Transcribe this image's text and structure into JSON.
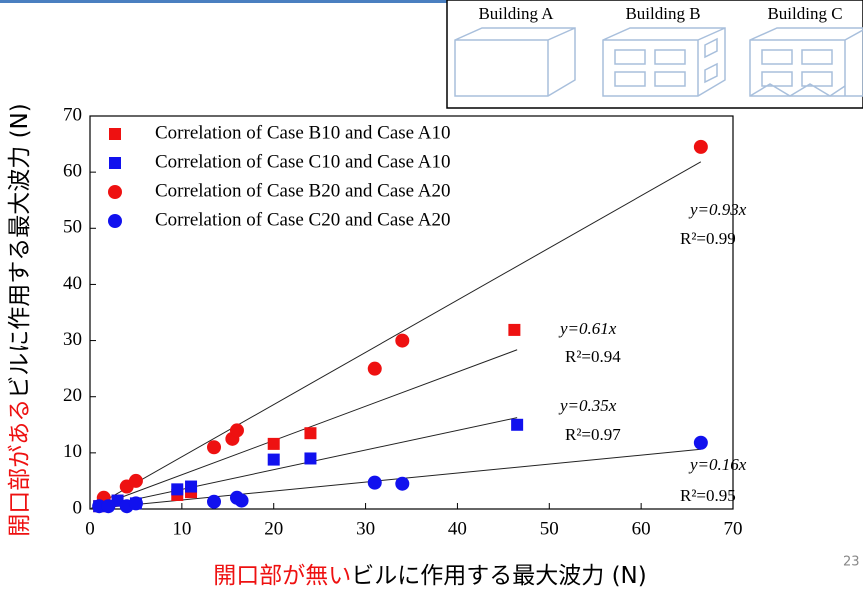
{
  "chart_data": {
    "type": "scatter",
    "xlabel_highlight": "開口部が無い",
    "xlabel_rest": "ビルに作用する最大波力 (N)",
    "ylabel_highlight": "開口部がある",
    "ylabel_rest": "ビルに作用する最大波力 (N)",
    "xlim": [
      0,
      70
    ],
    "ylim": [
      0,
      70
    ],
    "xticks": [
      0,
      10,
      20,
      30,
      40,
      50,
      60,
      70
    ],
    "yticks": [
      0,
      10,
      20,
      30,
      40,
      50,
      60,
      70
    ],
    "series": [
      {
        "name": "Correlation of Case B10 and Case A10",
        "color": "#ee1111",
        "marker": "square",
        "x": [
          1,
          3,
          9.5,
          11,
          20,
          24,
          46.2
        ],
        "values": [
          0.5,
          1.5,
          2.5,
          3,
          11.6,
          13.5,
          31.9
        ]
      },
      {
        "name": "Correlation of Case C10 and Case A10",
        "color": "#1111ee",
        "marker": "square",
        "x": [
          1,
          3,
          5,
          9.5,
          11,
          20,
          24,
          46.5
        ],
        "values": [
          0.5,
          1.5,
          1,
          3.5,
          4,
          8.8,
          9,
          15
        ]
      },
      {
        "name": "Correlation of Case B20 and Case A20",
        "color": "#ee1111",
        "marker": "circle",
        "x": [
          1.5,
          4,
          5,
          13.5,
          15.5,
          16,
          31,
          34,
          66.5
        ],
        "values": [
          2,
          4,
          5,
          11,
          12.5,
          14,
          25,
          30,
          64.5
        ]
      },
      {
        "name": "Correlation of Case C20 and Case A20",
        "color": "#1111ee",
        "marker": "circle",
        "x": [
          1,
          2,
          4,
          5,
          13.5,
          16,
          16.5,
          31,
          34,
          66.5
        ],
        "values": [
          0.5,
          0.5,
          0.5,
          1,
          1.3,
          2,
          1.5,
          4.7,
          4.5,
          11.8
        ]
      }
    ],
    "fits": [
      {
        "slope": 0.93,
        "x_end": 66.5,
        "label": "y=0.93x",
        "r2": "R²=0.99"
      },
      {
        "slope": 0.61,
        "x_end": 46.5,
        "label": "y=0.61x",
        "r2": "R²=0.94"
      },
      {
        "slope": 0.35,
        "x_end": 46.5,
        "label": "y=0.35x",
        "r2": "R²=0.97"
      },
      {
        "slope": 0.16,
        "x_end": 66.5,
        "label": "y=0.16x",
        "r2": "R²=0.95"
      }
    ]
  },
  "inset": {
    "labels": [
      "Building A",
      "Building B",
      "Building C"
    ]
  },
  "page_number": "23"
}
